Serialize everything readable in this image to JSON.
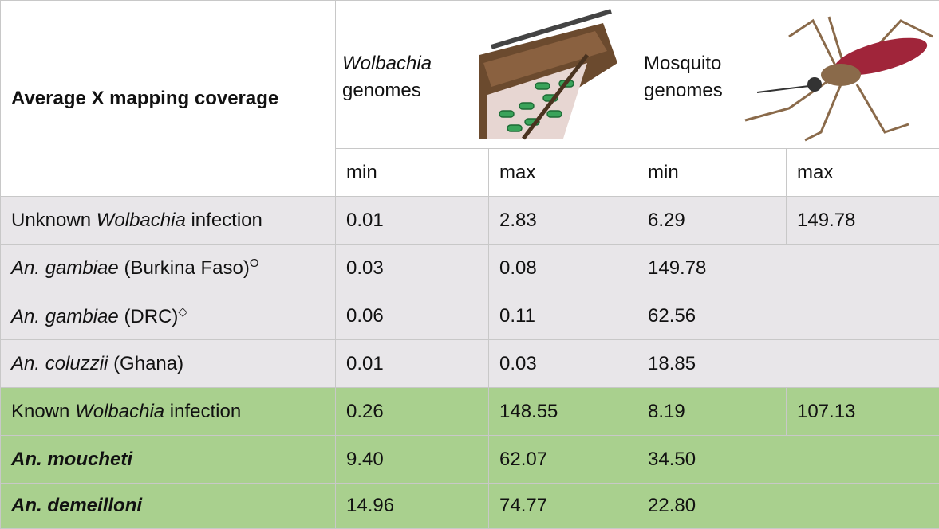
{
  "header": {
    "title": "Average X mapping coverage",
    "groups": [
      [
        "Wolbachia",
        "genomes"
      ],
      [
        "Mosquito",
        "genomes"
      ]
    ],
    "subheaders": [
      "min",
      "max",
      "min",
      "max"
    ]
  },
  "rows": [
    {
      "label": [
        "Unknown",
        "Wolbachia",
        "infection"
      ],
      "values": [
        "0.01",
        "2.83",
        "6.29",
        "149.78"
      ]
    },
    {
      "label": [
        "An. gambiae",
        "(Burkina Faso)",
        "O"
      ],
      "values": [
        "0.03",
        "0.08",
        "149.78"
      ]
    },
    {
      "label": [
        "An. gambiae",
        "(DRC)",
        "◇"
      ],
      "values": [
        "0.06",
        "0.11",
        "62.56"
      ]
    },
    {
      "label": [
        "An. coluzzii",
        "(Ghana)"
      ],
      "values": [
        "0.01",
        "0.03",
        "18.85"
      ]
    },
    {
      "label": [
        "Known",
        "Wolbachia",
        "infection"
      ],
      "values": [
        "0.26",
        "148.55",
        "8.19",
        "107.13"
      ]
    },
    {
      "label": [
        "An. moucheti"
      ],
      "values": [
        "9.40",
        "62.07",
        "34.50"
      ]
    },
    {
      "label": [
        "An. demeilloni"
      ],
      "values": [
        "14.96",
        "74.77",
        "22.80"
      ]
    }
  ]
}
